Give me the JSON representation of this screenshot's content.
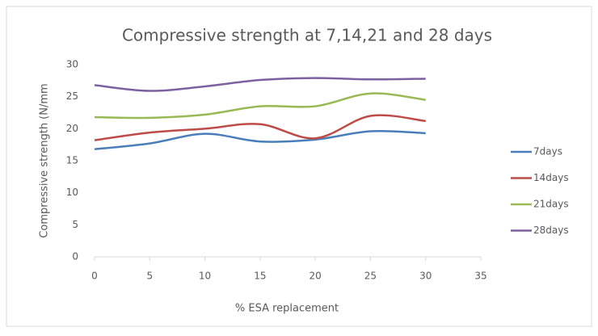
{
  "chart_data": {
    "type": "line",
    "title": "Compressive strength at 7,14,21 and 28 days",
    "x_label": "% ESA replacement",
    "y_label": "Compressive strength (N/mm",
    "x": [
      0,
      5,
      10,
      15,
      20,
      25,
      30
    ],
    "series": [
      {
        "name": "7days",
        "color": "#4a7ebb",
        "values": [
          16.8,
          17.7,
          19.2,
          18.0,
          18.3,
          19.6,
          19.3
        ]
      },
      {
        "name": "14days",
        "color": "#be4b48",
        "values": [
          18.2,
          19.4,
          20.0,
          20.7,
          18.5,
          22.0,
          21.2
        ]
      },
      {
        "name": "21days",
        "color": "#98b954",
        "values": [
          21.8,
          21.7,
          22.2,
          23.5,
          23.5,
          25.5,
          24.5
        ]
      },
      {
        "name": "28days",
        "color": "#7d60a0",
        "values": [
          26.8,
          25.9,
          26.6,
          27.6,
          27.9,
          27.7,
          27.8
        ]
      }
    ],
    "xlim": [
      0,
      35
    ],
    "xticks": [
      0,
      5,
      10,
      15,
      20,
      25,
      30,
      35
    ],
    "ylim": [
      0,
      30
    ],
    "yticks": [
      0,
      5,
      10,
      15,
      20,
      25,
      30
    ],
    "grid": false,
    "smooth": true,
    "legend": "right"
  }
}
